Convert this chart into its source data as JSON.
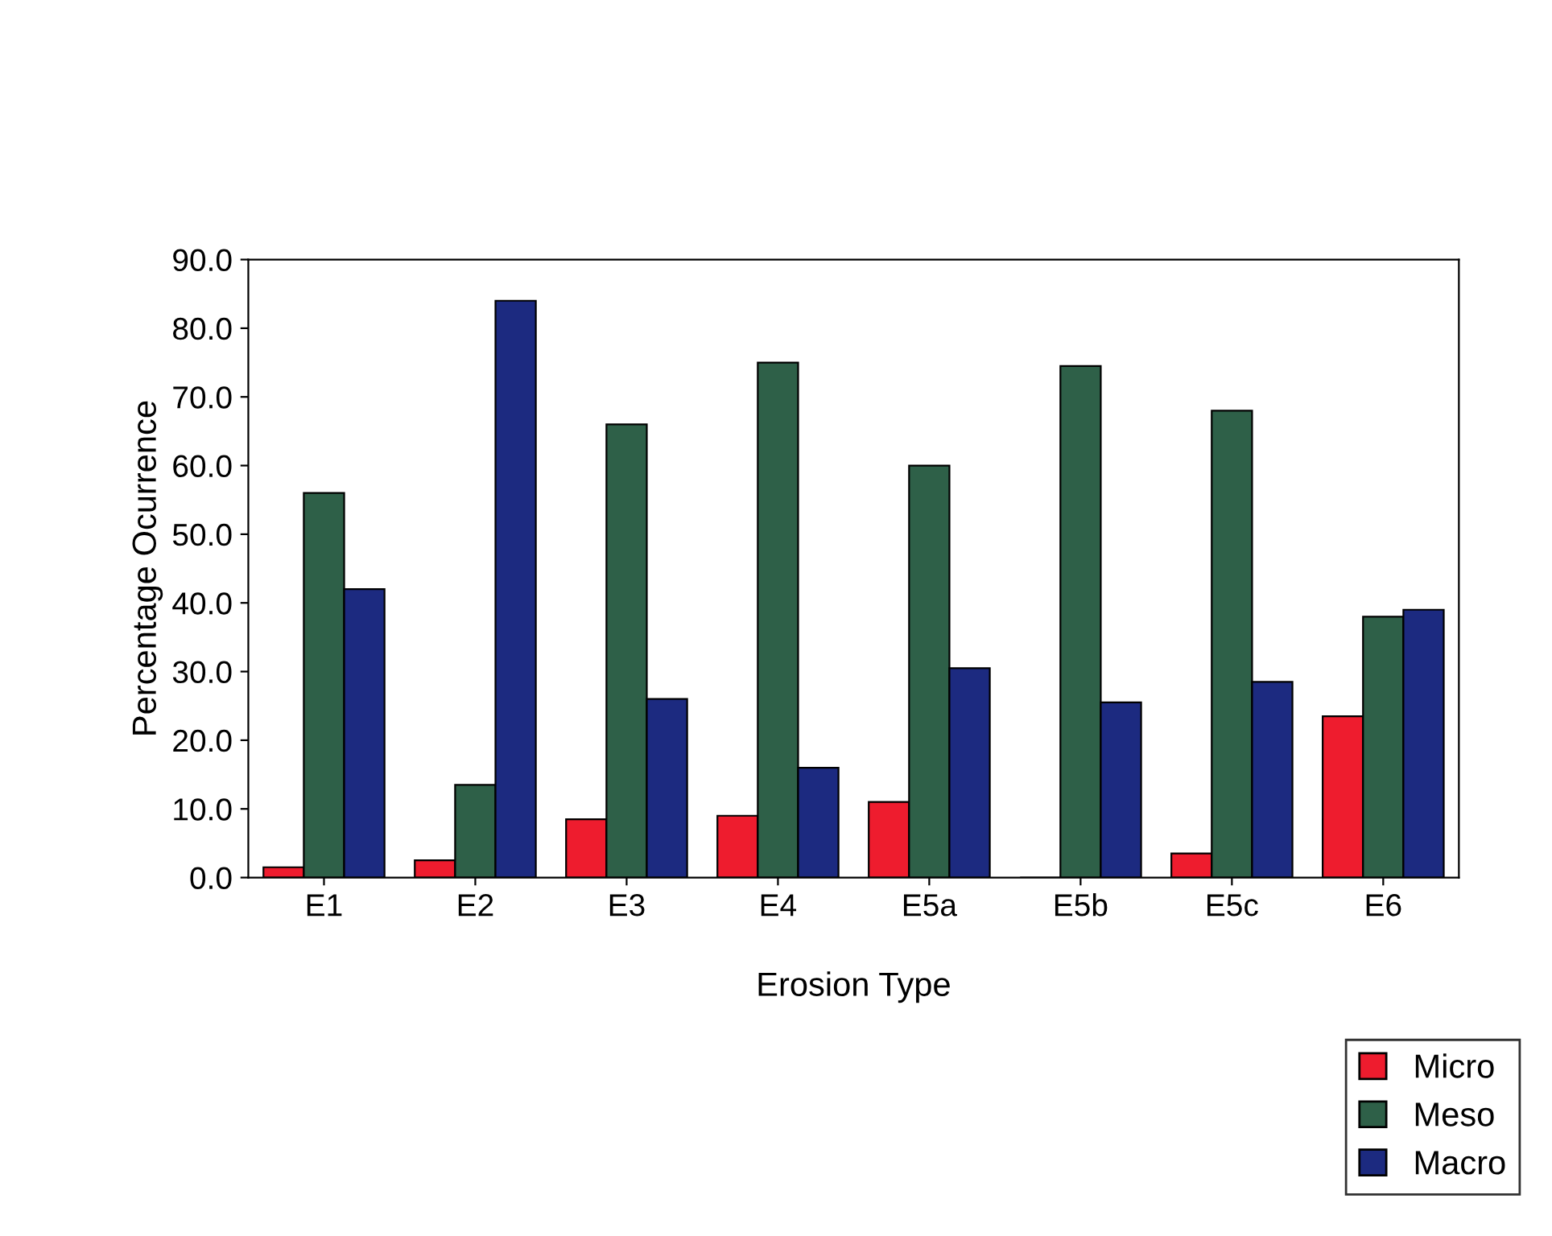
{
  "chart_data": {
    "type": "bar",
    "xlabel": "Erosion Type",
    "ylabel": "Percentage Ocurrence",
    "categories": [
      "E1",
      "E2",
      "E3",
      "E4",
      "E5a",
      "E5b",
      "E5c",
      "E6"
    ],
    "series": [
      {
        "name": "Micro",
        "color": "#ee1c2e",
        "values": [
          1.5,
          2.5,
          8.5,
          9,
          11,
          0,
          3.5,
          23.5
        ]
      },
      {
        "name": "Meso",
        "color": "#2e6048",
        "values": [
          56,
          13.5,
          66,
          75,
          60,
          74.5,
          68,
          38
        ]
      },
      {
        "name": "Macro",
        "color": "#1c2a80",
        "values": [
          42,
          84,
          26,
          16,
          30.5,
          25.5,
          28.5,
          39
        ]
      }
    ],
    "ylim": [
      0,
      90
    ],
    "yticks": [
      {
        "value": 0,
        "label": "0.0"
      },
      {
        "value": 10,
        "label": "10.0"
      },
      {
        "value": 20,
        "label": "20.0"
      },
      {
        "value": 30,
        "label": "30.0"
      },
      {
        "value": 40,
        "label": "40.0"
      },
      {
        "value": 50,
        "label": "50.0"
      },
      {
        "value": 60,
        "label": "60.0"
      },
      {
        "value": 70,
        "label": "70.0"
      },
      {
        "value": 80,
        "label": "80.0"
      },
      {
        "value": 90,
        "label": "90.0"
      }
    ],
    "grid": false,
    "legend": "bottom right"
  }
}
